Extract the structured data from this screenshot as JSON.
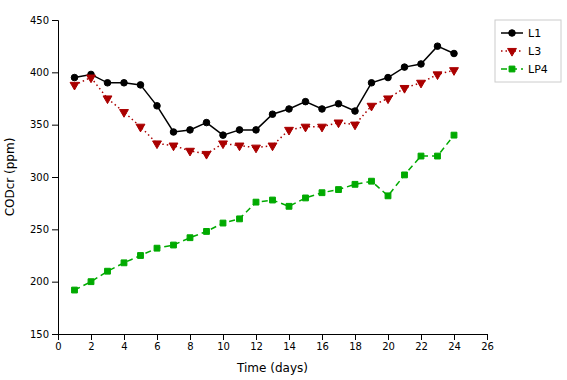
{
  "chart_data": {
    "type": "line",
    "xlabel": "Time (days)",
    "ylabel": "CODcr (ppm)",
    "x": [
      1,
      2,
      3,
      4,
      5,
      6,
      7,
      8,
      9,
      10,
      11,
      12,
      13,
      14,
      15,
      16,
      17,
      18,
      19,
      20,
      21,
      22,
      23,
      24
    ],
    "series": [
      {
        "name": "L1",
        "color": "black",
        "marker": "circle",
        "line_style": "solid",
        "values": [
          395,
          398,
          390,
          390,
          388,
          368,
          343,
          345,
          352,
          340,
          345,
          345,
          360,
          365,
          372,
          365,
          370,
          363,
          390,
          395,
          405,
          408,
          425,
          418
        ]
      },
      {
        "name": "L3",
        "color": "#aa0000",
        "marker": "triangle-down",
        "line_style": "dotted",
        "values": [
          388,
          395,
          375,
          362,
          348,
          332,
          330,
          325,
          322,
          332,
          330,
          328,
          330,
          345,
          348,
          348,
          352,
          350,
          368,
          375,
          385,
          390,
          398,
          402
        ]
      },
      {
        "name": "LP4",
        "color": "#00aa00",
        "marker": "square",
        "line_style": "dashed",
        "values": [
          192,
          200,
          210,
          218,
          225,
          232,
          235,
          242,
          248,
          256,
          260,
          276,
          278,
          272,
          280,
          285,
          288,
          293,
          296,
          282,
          302,
          320,
          320,
          340
        ]
      }
    ],
    "xlim": [
      0,
      26
    ],
    "ylim": [
      150,
      450
    ],
    "xticks": [
      0,
      2,
      4,
      6,
      8,
      10,
      12,
      14,
      16,
      18,
      20,
      22,
      24,
      26
    ],
    "yticks": [
      150,
      200,
      250,
      300,
      350,
      400,
      450
    ],
    "grid": false,
    "legend": "upper right"
  }
}
